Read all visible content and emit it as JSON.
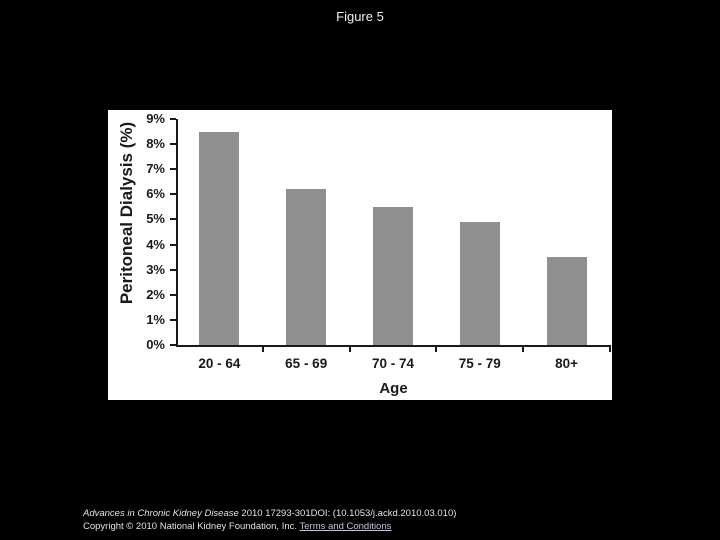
{
  "slide": {
    "title": "Figure 5",
    "background_color": "#000000",
    "panel_color": "#ffffff"
  },
  "chart_data": {
    "type": "bar",
    "categories": [
      "20 - 64",
      "65 - 69",
      "70 - 74",
      "75 - 79",
      "80+"
    ],
    "values": [
      8.5,
      6.2,
      5.5,
      4.9,
      3.5
    ],
    "title": "",
    "xlabel": "Age",
    "ylabel": "Peritoneal Dialysis (%)",
    "ylim": [
      0,
      9
    ],
    "ytick_step": 1,
    "ytick_suffix": "%",
    "grid": false,
    "legend": false,
    "bar_color": "#8f8f8f",
    "axis_color": "#1a1a1a"
  },
  "footer": {
    "citation_journal": "Advances in Chronic Kidney Disease",
    "citation_rest": " 2010 17293-301DOI: (10.1053/j.ackd.2010.03.010)",
    "copyright_text": "Copyright © 2010 National Kidney Foundation, Inc. ",
    "terms_link_label": "Terms and Conditions",
    "link_color": "#c3c3de"
  }
}
